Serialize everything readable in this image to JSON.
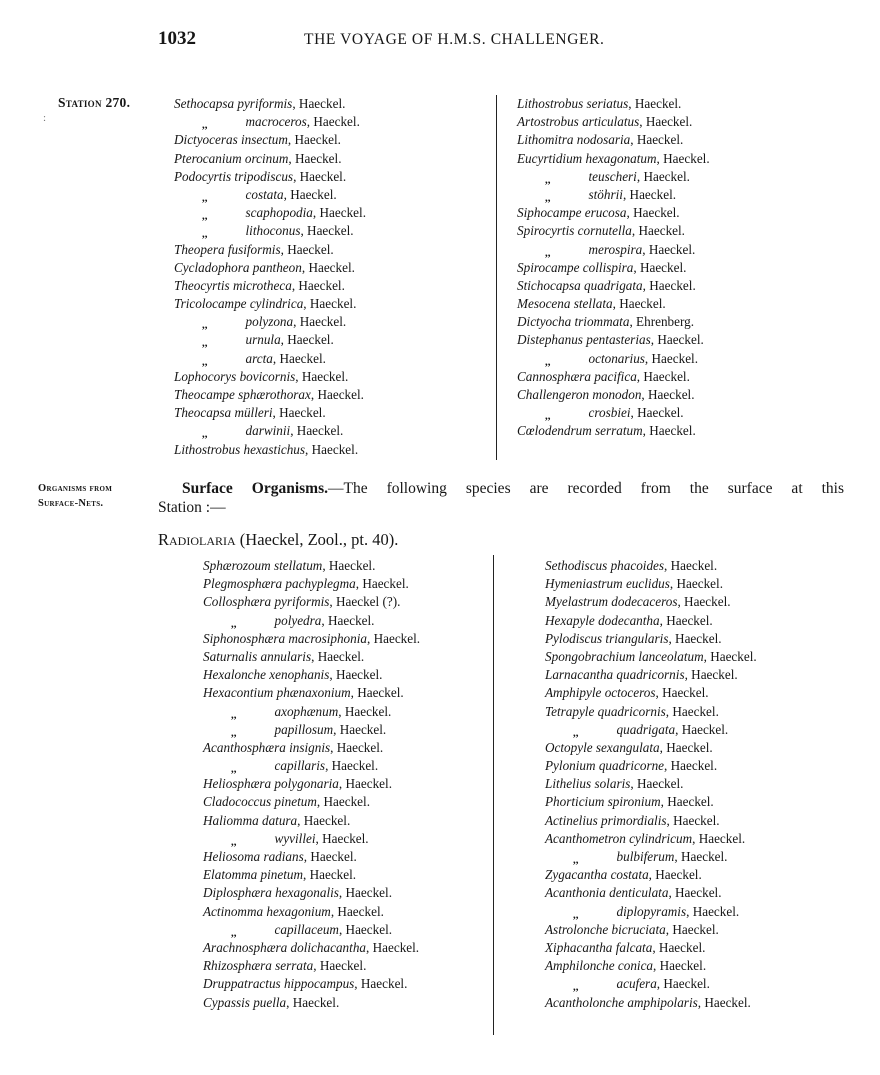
{
  "header": {
    "page_number": "1032",
    "title": "THE VOYAGE OF H.M.S. CHALLENGER."
  },
  "sidebar": {
    "station": "Station 270.",
    "station_mark": ":",
    "organisms_line1": "Organisms from",
    "organisms_line2": "Surface-Nets."
  },
  "station_list_left": [
    {
      "name": "Sethocapsa pyriformis",
      "auth": ", Haeckel."
    },
    {
      "ditto": ",,",
      "name": "macroceros",
      "auth": ", Haeckel."
    },
    {
      "name": "Dictyoceras insectum",
      "auth": ", Haeckel."
    },
    {
      "name": "Pterocanium orcinum",
      "auth": ", Haeckel."
    },
    {
      "name": "Podocyrtis tripodiscus",
      "auth": ", Haeckel."
    },
    {
      "ditto": ",,",
      "name": "costata",
      "auth": ", Haeckel."
    },
    {
      "ditto": ",,",
      "name": "scaphopodia",
      "auth": ", Haeckel."
    },
    {
      "ditto": ",,",
      "name": "lithoconus",
      "auth": ", Haeckel."
    },
    {
      "name": "Theopera fusiformis",
      "auth": ", Haeckel."
    },
    {
      "name": "Cycladophora pantheon",
      "auth": ", Haeckel."
    },
    {
      "name": "Theocyrtis microtheca",
      "auth": ", Haeckel."
    },
    {
      "name": "Tricolocampe cylindrica",
      "auth": ", Haeckel."
    },
    {
      "ditto": ",,",
      "name": "polyzona",
      "auth": ", Haeckel."
    },
    {
      "ditto": ",,",
      "name": "urnula",
      "auth": ", Haeckel."
    },
    {
      "ditto": ",,",
      "name": "arcta",
      "auth": ", Haeckel."
    },
    {
      "name": "Lophocorys bovicornis",
      "auth": ", Haeckel."
    },
    {
      "name": "Theocampe sphærothorax",
      "auth": ", Haeckel."
    },
    {
      "name": "Theocapsa mülleri",
      "auth": ", Haeckel."
    },
    {
      "ditto": ",,",
      "name": "darwinii",
      "auth": ", Haeckel."
    },
    {
      "name": "Lithostrobus hexastichus",
      "auth": ", Haeckel."
    }
  ],
  "station_list_right": [
    {
      "name": "Lithostrobus seriatus",
      "auth": ", Haeckel."
    },
    {
      "name": "Artostrobus articulatus",
      "auth": ", Haeckel."
    },
    {
      "name": "Lithomitra nodosaria",
      "auth": ", Haeckel."
    },
    {
      "name": "Eucyrtidium hexagonatum",
      "auth": ", Haeckel."
    },
    {
      "ditto": ",,",
      "name": "teuscheri",
      "auth": ", Haeckel."
    },
    {
      "ditto": ",,",
      "name": "stöhrii",
      "auth": ", Haeckel."
    },
    {
      "name": "Siphocampe erucosa",
      "auth": ", Haeckel."
    },
    {
      "name": "Spirocyrtis cornutella",
      "auth": ", Haeckel."
    },
    {
      "ditto": ",,",
      "name": "merospira",
      "auth": ", Haeckel."
    },
    {
      "name": "Spirocampe collispira",
      "auth": ", Haeckel."
    },
    {
      "name": "Stichocapsa quadrigata",
      "auth": ", Haeckel."
    },
    {
      "name": "Mesocena stellata",
      "auth": ", Haeckel."
    },
    {
      "name": "Dictyocha triommata",
      "auth": ", Ehrenberg."
    },
    {
      "name": "Distephanus pentasterias",
      "auth": ", Haeckel."
    },
    {
      "ditto": ",,",
      "name": "octonarius",
      "auth": ", Haeckel."
    },
    {
      "name": "Cannosphæra pacifica",
      "auth": ", Haeckel."
    },
    {
      "name": "Challengeron monodon",
      "auth": ", Haeckel."
    },
    {
      "ditto": ",,",
      "name": "crosbiei",
      "auth": ", Haeckel."
    },
    {
      "name": "Cœlodendrum serratum",
      "auth": ", Haeckel."
    }
  ],
  "surface": {
    "heading_bold": "Surface Organisms.",
    "heading_text": "—The following species are recorded from the surface at this",
    "heading_cont": "Station :—",
    "radiolaria": "Radiolaria",
    "radiolaria_ref": " (Haeckel, Zool., pt. 40)."
  },
  "surface_list_left": [
    {
      "name": "Sphærozoum stellatum",
      "auth": ", Haeckel."
    },
    {
      "name": "Plegmosphæra pachyplegma",
      "auth": ", Haeckel."
    },
    {
      "name": "Collosphæra pyriformis",
      "auth": ", Haeckel (?)."
    },
    {
      "ditto": ",,",
      "name": "polyedra",
      "auth": ", Haeckel."
    },
    {
      "name": "Siphonosphæra macrosiphonia",
      "auth": ", Haeckel."
    },
    {
      "name": "Saturnalis annularis",
      "auth": ", Haeckel."
    },
    {
      "name": "Hexalonche xenophanis",
      "auth": ", Haeckel."
    },
    {
      "name": "Hexacontium phænaxonium",
      "auth": ", Haeckel."
    },
    {
      "ditto": ",,",
      "name": "axophænum",
      "auth": ", Haeckel."
    },
    {
      "ditto": ",,",
      "name": "papillosum",
      "auth": ", Haeckel."
    },
    {
      "name": "Acanthosphæra insignis",
      "auth": ", Haeckel."
    },
    {
      "ditto": ",,",
      "name": "capillaris",
      "auth": ", Haeckel."
    },
    {
      "name": "Heliosphæra polygonaria",
      "auth": ", Haeckel."
    },
    {
      "name": "Cladococcus pinetum",
      "auth": ", Haeckel."
    },
    {
      "name": "Haliomma datura",
      "auth": ", Haeckel."
    },
    {
      "ditto": ",,",
      "name": "wyvillei",
      "auth": ", Haeckel."
    },
    {
      "name": "Heliosoma radians",
      "auth": ", Haeckel."
    },
    {
      "name": "Elatomma pinetum",
      "auth": ", Haeckel."
    },
    {
      "name": "Diplosphæra hexagonalis",
      "auth": ", Haeckel."
    },
    {
      "name": "Actinomma hexagonium",
      "auth": ", Haeckel."
    },
    {
      "ditto": ",,",
      "name": "capillaceum",
      "auth": ", Haeckel."
    },
    {
      "name": "Arachnosphæra dolichacantha",
      "auth": ", Haeckel."
    },
    {
      "name": "Rhizosphæra serrata",
      "auth": ", Haeckel."
    },
    {
      "name": "Druppatractus hippocampus",
      "auth": ", Haeckel."
    },
    {
      "name": "Cypassis puella",
      "auth": ", Haeckel."
    }
  ],
  "surface_list_right": [
    {
      "name": "Sethodiscus phacoides",
      "auth": ", Haeckel."
    },
    {
      "name": "Hymeniastrum euclidus",
      "auth": ", Haeckel."
    },
    {
      "name": "Myelastrum dodecaceros",
      "auth": ", Haeckel."
    },
    {
      "name": "Hexapyle dodecantha",
      "auth": ", Haeckel."
    },
    {
      "name": "Pylodiscus triangularis",
      "auth": ", Haeckel."
    },
    {
      "name": "Spongobrachium lanceolatum",
      "auth": ", Haeckel."
    },
    {
      "name": "Larnacantha quadricornis",
      "auth": ", Haeckel."
    },
    {
      "name": "Amphipyle octoceros",
      "auth": ", Haeckel."
    },
    {
      "name": "Tetrapyle quadricornis",
      "auth": ", Haeckel."
    },
    {
      "ditto": ",,",
      "name": "quadrigata",
      "auth": ", Haeckel."
    },
    {
      "name": "Octopyle sexangulata",
      "auth": ", Haeckel."
    },
    {
      "name": "Pylonium quadricorne",
      "auth": ", Haeckel."
    },
    {
      "name": "Lithelius solaris",
      "auth": ", Haeckel."
    },
    {
      "name": "Phorticium spironium",
      "auth": ", Haeckel."
    },
    {
      "name": "Actinelius primordialis",
      "auth": ", Haeckel."
    },
    {
      "name": "Acanthometron cylindricum",
      "auth": ", Haeckel."
    },
    {
      "ditto": ",,",
      "name": "bulbiferum",
      "auth": ", Haeckel."
    },
    {
      "name": "Zygacantha costata",
      "auth": ", Haeckel."
    },
    {
      "name": "Acanthonia denticulata",
      "auth": ", Haeckel."
    },
    {
      "ditto": ",,",
      "name": "diplopyramis",
      "auth": ", Haeckel."
    },
    {
      "name": "Astrolonche bicruciata",
      "auth": ", Haeckel."
    },
    {
      "name": "Xiphacantha falcata",
      "auth": ", Haeckel."
    },
    {
      "name": "Amphilonche conica",
      "auth": ", Haeckel."
    },
    {
      "ditto": ",,",
      "name": "acufera",
      "auth": ", Haeckel."
    },
    {
      "name": "Acantholonche amphipolaris",
      "auth": ", Haeckel."
    }
  ]
}
